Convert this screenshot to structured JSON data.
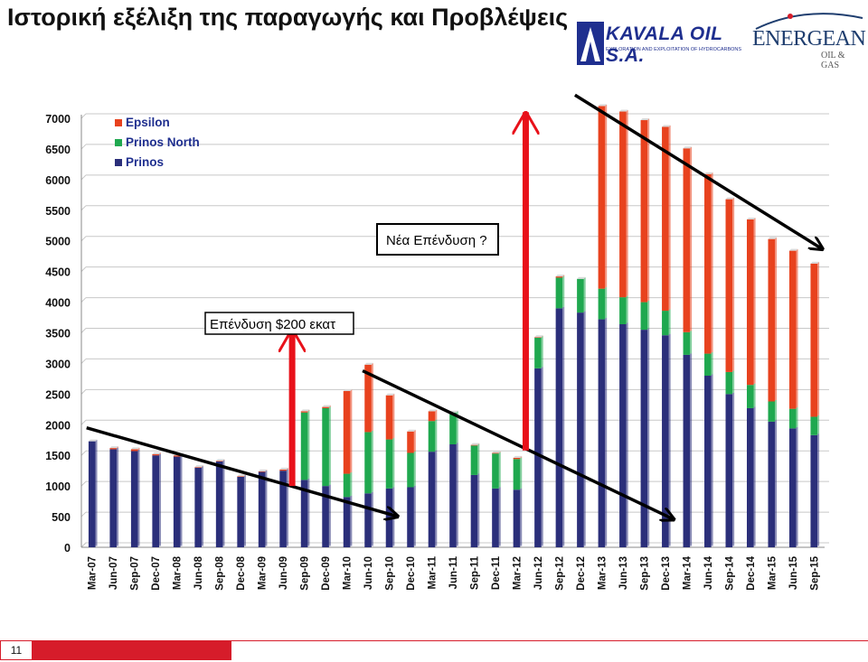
{
  "slide": {
    "title": "Ιστορική εξέλιξη της παραγωγής και Προβλέψεις",
    "page_number": "11"
  },
  "logos": {
    "kavala_name": "KAVALA OIL S.A.",
    "kavala_sub": "EXPLORATION AND EXPLOITATION OF HYDROCARBONS",
    "energean_name": "ENERGEAN",
    "energean_sub": "OIL & GAS"
  },
  "annotations": {
    "investment_1": "Επένδυση $200 εκατ",
    "investment_2": "Νέα Επένδυση ?"
  },
  "colors": {
    "prinos": "#2b2f7a",
    "prinos_north": "#1fa84f",
    "epsilon": "#e8421e",
    "arrow_red": "#e8111a",
    "footer_red": "#d61c2a"
  },
  "chart_data": {
    "type": "bar",
    "stacked": true,
    "categories": [
      "Mar-07",
      "Jun-07",
      "Sep-07",
      "Dec-07",
      "Mar-08",
      "Jun-08",
      "Sep-08",
      "Dec-08",
      "Mar-09",
      "Jun-09",
      "Sep-09",
      "Dec-09",
      "Mar-10",
      "Jun-10",
      "Sep-10",
      "Dec-10",
      "Mar-11",
      "Jun-11",
      "Sep-11",
      "Dec-11",
      "Mar-12",
      "Jun-12",
      "Sep-12",
      "Dec-12",
      "Mar-13",
      "Jun-13",
      "Sep-13",
      "Dec-13",
      "Mar-14",
      "Jun-14",
      "Sep-14",
      "Dec-14",
      "Mar-15",
      "Jun-15",
      "Sep-15"
    ],
    "series": [
      {
        "name": "Prinos",
        "color": "#2b2f7a",
        "values": [
          1730,
          1600,
          1570,
          1500,
          1480,
          1300,
          1400,
          1150,
          1230,
          1250,
          1100,
          1000,
          820,
          880,
          960,
          980,
          1560,
          1680,
          1180,
          960,
          940,
          2920,
          3900,
          3830,
          3720,
          3640,
          3550,
          3460,
          3140,
          2800,
          2500,
          2270,
          2050,
          1940,
          1830
        ]
      },
      {
        "name": "Prinos North",
        "color": "#1fa84f",
        "values": [
          0,
          0,
          0,
          0,
          0,
          0,
          0,
          0,
          0,
          0,
          1100,
          1270,
          380,
          1000,
          800,
          560,
          500,
          520,
          480,
          570,
          500,
          500,
          500,
          550,
          500,
          440,
          450,
          400,
          370,
          360,
          360,
          380,
          330,
          320,
          300
        ]
      },
      {
        "name": "Epsilon",
        "color": "#e8421e",
        "values": [
          0,
          20,
          30,
          20,
          20,
          10,
          10,
          10,
          10,
          20,
          20,
          20,
          1350,
          1100,
          720,
          350,
          160,
          0,
          10,
          10,
          20,
          10,
          20,
          0,
          2980,
          3030,
          2970,
          3000,
          3000,
          2930,
          2820,
          2700,
          2650,
          2580,
          2500
        ]
      }
    ],
    "ylim": [
      0,
      7000
    ],
    "yticks": [
      0,
      500,
      1000,
      1500,
      2000,
      2500,
      3000,
      3500,
      4000,
      4500,
      5000,
      5500,
      6000,
      6500,
      7000
    ],
    "legend": [
      "Epsilon",
      "Prinos North",
      "Prinos"
    ],
    "legend_position": "top-left",
    "grid": true,
    "trend_arrows": [
      {
        "from": [
          "Mar-07",
          1950
        ],
        "to": [
          "Sep-10",
          500
        ],
        "color": "#000000"
      },
      {
        "from": [
          "Jun-10",
          2880
        ],
        "to": [
          "Dec-13",
          450
        ],
        "color": "#000000"
      },
      {
        "from": [
          "Dec-12",
          7380
        ],
        "to": [
          "Sep-15",
          4860
        ],
        "color": "#000000"
      }
    ],
    "investment_arrows": [
      {
        "at": "Jun-09",
        "from": 1000,
        "to": 3550,
        "color": "#e8111a"
      },
      {
        "at": "Mar-12",
        "from": 1580,
        "to": 7100,
        "color": "#e8111a"
      }
    ]
  }
}
